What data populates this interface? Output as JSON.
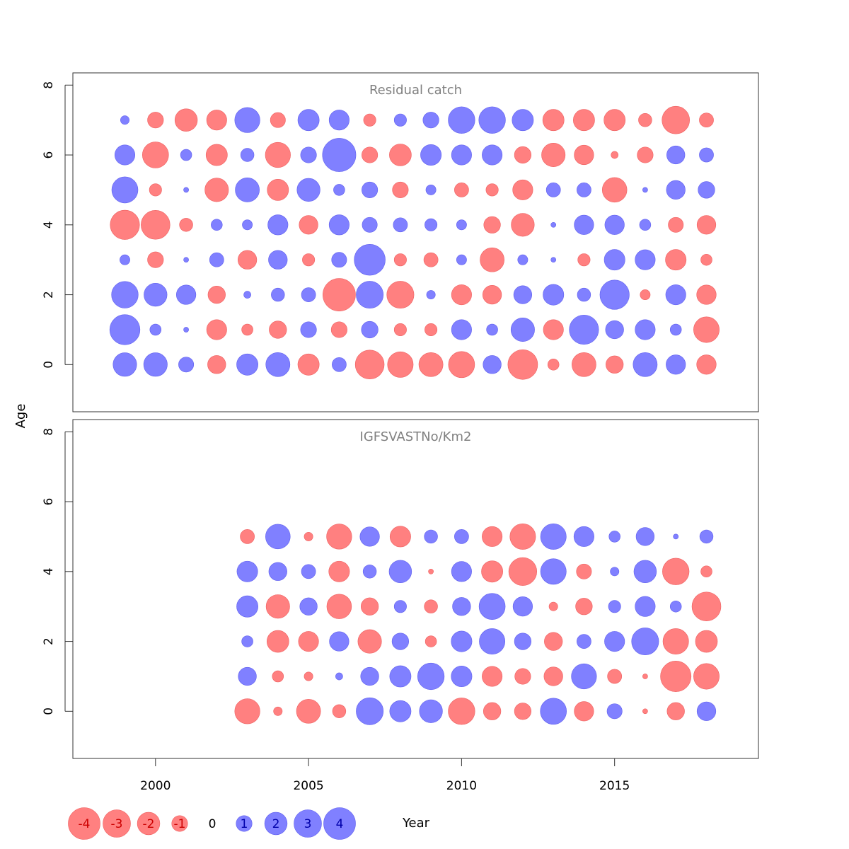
{
  "chart_data": {
    "type": "bubble",
    "xlabel": "Year",
    "ylabel": "Age",
    "xlim": [
      1997.3,
      2019.7
    ],
    "ylim": [
      -1.35,
      8.35
    ],
    "x_ticks": [
      2000,
      2005,
      2010,
      2015
    ],
    "y_ticks": [
      0,
      2,
      4,
      6,
      8
    ],
    "colors": {
      "positive": "#8080ff",
      "negative": "#ff8080",
      "positive_stroke": "#6060ee",
      "negative_stroke": "#ee6060"
    },
    "legend": {
      "placement": "bottom-left",
      "values": [
        -4,
        -3,
        -2,
        -1,
        0,
        1,
        2,
        3,
        4
      ],
      "labels": [
        "-4",
        "-3",
        "-2",
        "-1",
        "0",
        "1",
        "2",
        "3",
        "4"
      ]
    },
    "panels": [
      {
        "title": "Residual catch",
        "years": [
          1999,
          2000,
          2001,
          2002,
          2003,
          2004,
          2005,
          2006,
          2007,
          2008,
          2009,
          2010,
          2011,
          2012,
          2013,
          2014,
          2015,
          2016,
          2017,
          2018
        ],
        "ages": [
          0,
          1,
          2,
          3,
          4,
          5,
          6,
          7
        ],
        "residuals": [
          [
            2.2,
            2.2,
            0.9,
            -1.3,
            1.8,
            2.3,
            -1.8,
            0.8,
            -3.3,
            -2.6,
            -2.3,
            -2.7,
            1.3,
            -3.5,
            -0.5,
            -2.3,
            -1.2,
            2.3,
            1.5,
            -1.5
          ],
          [
            3.6,
            0.5,
            0.1,
            -1.6,
            -0.5,
            -1.2,
            1.0,
            -1.0,
            1.1,
            -0.6,
            -0.6,
            1.6,
            0.5,
            2.2,
            -1.6,
            3.4,
            1.3,
            1.6,
            0.5,
            -2.6
          ],
          [
            2.8,
            2.1,
            1.5,
            -1.2,
            0.2,
            0.7,
            0.8,
            -4.2,
            2.9,
            -2.9,
            0.3,
            -1.6,
            -1.4,
            1.3,
            1.7,
            0.7,
            3.4,
            -0.4,
            1.6,
            -1.5
          ],
          [
            0.4,
            -1.0,
            0.1,
            0.8,
            -1.4,
            1.4,
            -0.6,
            0.9,
            3.8,
            -0.6,
            -0.8,
            0.4,
            -2.3,
            0.4,
            0.1,
            -0.6,
            1.7,
            1.6,
            -1.7,
            -0.5
          ],
          [
            -3.4,
            -3.3,
            -0.7,
            0.5,
            0.4,
            1.6,
            -1.4,
            1.6,
            0.9,
            0.8,
            0.6,
            0.4,
            -1.1,
            -2.1,
            0.1,
            1.5,
            1.5,
            0.5,
            -0.9,
            -1.4
          ],
          [
            2.7,
            -0.6,
            0.1,
            -2.2,
            2.3,
            -1.8,
            2.1,
            0.5,
            1.0,
            -1.0,
            0.4,
            -0.8,
            -0.6,
            -1.6,
            0.8,
            0.8,
            -2.4,
            0.1,
            1.4,
            1.1
          ],
          [
            1.6,
            -2.7,
            0.5,
            -1.8,
            0.7,
            -2.5,
            1.0,
            4.4,
            -1.0,
            -1.9,
            1.7,
            1.6,
            1.6,
            -1.1,
            -2.2,
            -1.5,
            -0.2,
            -1.0,
            1.3,
            0.8
          ],
          [
            0.3,
            -1.0,
            -2.0,
            -1.6,
            2.5,
            -0.9,
            1.8,
            1.6,
            -0.6,
            0.6,
            1.0,
            2.8,
            2.8,
            1.8,
            -1.8,
            -1.8,
            -1.8,
            -0.7,
            -3.0,
            -0.8
          ]
        ]
      },
      {
        "title": "IGFSVASTNo/Km2",
        "years": [
          2003,
          2004,
          2005,
          2006,
          2007,
          2008,
          2009,
          2010,
          2011,
          2012,
          2013,
          2014,
          2015,
          2016,
          2017,
          2018
        ],
        "ages": [
          0,
          1,
          2,
          3,
          4,
          5
        ],
        "residuals": [
          [
            -2.5,
            -0.3,
            -2.3,
            -0.7,
            2.9,
            1.8,
            2.1,
            -2.8,
            -1.2,
            -1.1,
            2.7,
            -1.5,
            0.9,
            -0.1,
            -1.2,
            1.4
          ],
          [
            1.3,
            -0.5,
            -0.3,
            0.2,
            1.3,
            1.8,
            2.8,
            1.7,
            -1.6,
            -1.0,
            -1.4,
            2.5,
            -0.8,
            -0.1,
            -3.7,
            -2.6
          ],
          [
            0.5,
            -1.9,
            -1.6,
            1.5,
            -2.2,
            1.1,
            -0.5,
            1.7,
            2.6,
            1.1,
            -1.3,
            0.8,
            1.6,
            2.9,
            -2.6,
            -1.9
          ],
          [
            1.8,
            -2.2,
            1.2,
            -2.4,
            -1.2,
            0.6,
            -0.7,
            1.3,
            2.7,
            1.5,
            -0.3,
            -1.1,
            0.6,
            1.6,
            0.5,
            -3.3
          ],
          [
            1.7,
            1.3,
            0.8,
            -1.7,
            0.7,
            2.0,
            -0.1,
            1.6,
            -1.8,
            -3.1,
            2.6,
            -0.9,
            0.3,
            2.0,
            -2.8,
            -0.5
          ],
          [
            -0.8,
            2.4,
            -0.3,
            -2.5,
            1.5,
            -1.7,
            0.7,
            0.8,
            -1.6,
            -2.6,
            2.6,
            1.6,
            0.5,
            1.3,
            0.1,
            0.7
          ]
        ]
      }
    ]
  }
}
